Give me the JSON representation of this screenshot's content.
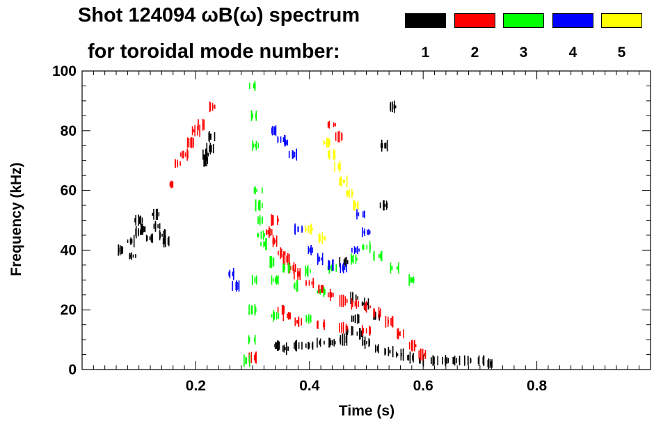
{
  "title": {
    "line1": "Shot 124094 ωB(ω) spectrum",
    "line2": "for toroidal mode number:"
  },
  "legend": [
    {
      "label": "1",
      "color": "#000000"
    },
    {
      "label": "2",
      "color": "#ff0000"
    },
    {
      "label": "3",
      "color": "#00ff00"
    },
    {
      "label": "4",
      "color": "#0000ff"
    },
    {
      "label": "5",
      "color": "#ffff00"
    }
  ],
  "chart_data": {
    "type": "scatter",
    "xlabel": "Time (s)",
    "ylabel": "Frequency (kHz)",
    "xlim": [
      0.0,
      1.0
    ],
    "ylim": [
      0,
      100
    ],
    "xticks": [
      0.2,
      0.4,
      0.6,
      0.8
    ],
    "xtick_labels": [
      "0.2",
      "0.4",
      "0.6",
      "0.8"
    ],
    "yticks": [
      0,
      20,
      40,
      60,
      80,
      100
    ],
    "ytick_labels": [
      "0",
      "20",
      "40",
      "60",
      "80",
      "100"
    ],
    "series": [
      {
        "name": "1",
        "color": "#000000",
        "points": [
          [
            0.07,
            40
          ],
          [
            0.085,
            43
          ],
          [
            0.1,
            46
          ],
          [
            0.11,
            47
          ],
          [
            0.12,
            44
          ],
          [
            0.13,
            48
          ],
          [
            0.14,
            45
          ],
          [
            0.15,
            43
          ],
          [
            0.1,
            50
          ],
          [
            0.13,
            52
          ],
          [
            0.09,
            38
          ],
          [
            0.22,
            72
          ],
          [
            0.23,
            78
          ],
          [
            0.225,
            74
          ],
          [
            0.215,
            70
          ],
          [
            0.34,
            8
          ],
          [
            0.36,
            7
          ],
          [
            0.38,
            8
          ],
          [
            0.4,
            8
          ],
          [
            0.42,
            9
          ],
          [
            0.44,
            9
          ],
          [
            0.46,
            10
          ],
          [
            0.47,
            13
          ],
          [
            0.48,
            17
          ],
          [
            0.49,
            12
          ],
          [
            0.5,
            9
          ],
          [
            0.52,
            7
          ],
          [
            0.54,
            6
          ],
          [
            0.56,
            5
          ],
          [
            0.58,
            4
          ],
          [
            0.6,
            3
          ],
          [
            0.62,
            3
          ],
          [
            0.64,
            3
          ],
          [
            0.66,
            3
          ],
          [
            0.68,
            3
          ],
          [
            0.7,
            3
          ],
          [
            0.72,
            2
          ],
          [
            0.48,
            24
          ],
          [
            0.5,
            22
          ],
          [
            0.52,
            18
          ],
          [
            0.53,
            55
          ],
          [
            0.53,
            75
          ],
          [
            0.545,
            88
          ],
          [
            0.46,
            36
          ]
        ]
      },
      {
        "name": "2",
        "color": "#ff0000",
        "points": [
          [
            0.16,
            62
          ],
          [
            0.17,
            69
          ],
          [
            0.18,
            72
          ],
          [
            0.19,
            76
          ],
          [
            0.2,
            80
          ],
          [
            0.21,
            82
          ],
          [
            0.23,
            88
          ],
          [
            0.33,
            46
          ],
          [
            0.34,
            43
          ],
          [
            0.35,
            39
          ],
          [
            0.36,
            37
          ],
          [
            0.37,
            34
          ],
          [
            0.35,
            20
          ],
          [
            0.36,
            18
          ],
          [
            0.38,
            32
          ],
          [
            0.4,
            29
          ],
          [
            0.42,
            27
          ],
          [
            0.44,
            25
          ],
          [
            0.46,
            23
          ],
          [
            0.48,
            22
          ],
          [
            0.5,
            21
          ],
          [
            0.52,
            19
          ],
          [
            0.54,
            16
          ],
          [
            0.56,
            12
          ],
          [
            0.58,
            8
          ],
          [
            0.6,
            5
          ],
          [
            0.44,
            82
          ],
          [
            0.45,
            78
          ],
          [
            0.34,
            50
          ],
          [
            0.3,
            4
          ],
          [
            0.38,
            16
          ],
          [
            0.42,
            15
          ],
          [
            0.46,
            14
          ],
          [
            0.5,
            13
          ]
        ]
      },
      {
        "name": "3",
        "color": "#00ff00",
        "points": [
          [
            0.3,
            95
          ],
          [
            0.3,
            85
          ],
          [
            0.305,
            75
          ],
          [
            0.31,
            60
          ],
          [
            0.31,
            55
          ],
          [
            0.31,
            50
          ],
          [
            0.315,
            45
          ],
          [
            0.32,
            42
          ],
          [
            0.3,
            30
          ],
          [
            0.3,
            20
          ],
          [
            0.3,
            10
          ],
          [
            0.33,
            36
          ],
          [
            0.36,
            34
          ],
          [
            0.4,
            33
          ],
          [
            0.44,
            34
          ],
          [
            0.48,
            37
          ],
          [
            0.5,
            41
          ],
          [
            0.52,
            38
          ],
          [
            0.55,
            34
          ],
          [
            0.58,
            30
          ],
          [
            0.34,
            30
          ],
          [
            0.38,
            28
          ],
          [
            0.42,
            26
          ],
          [
            0.34,
            18
          ],
          [
            0.4,
            17
          ],
          [
            0.29,
            3
          ]
        ]
      },
      {
        "name": "4",
        "color": "#0000ff",
        "points": [
          [
            0.34,
            80
          ],
          [
            0.35,
            77
          ],
          [
            0.36,
            76
          ],
          [
            0.37,
            72
          ],
          [
            0.38,
            47
          ],
          [
            0.4,
            40
          ],
          [
            0.42,
            37
          ],
          [
            0.44,
            35
          ],
          [
            0.46,
            34
          ],
          [
            0.48,
            40
          ],
          [
            0.5,
            46
          ],
          [
            0.49,
            52
          ],
          [
            0.26,
            32
          ],
          [
            0.27,
            28
          ]
        ]
      },
      {
        "name": "5",
        "color": "#ffff00",
        "points": [
          [
            0.43,
            76
          ],
          [
            0.44,
            72
          ],
          [
            0.45,
            68
          ],
          [
            0.46,
            63
          ],
          [
            0.47,
            59
          ],
          [
            0.48,
            55
          ],
          [
            0.4,
            47
          ],
          [
            0.42,
            44
          ]
        ]
      }
    ]
  }
}
